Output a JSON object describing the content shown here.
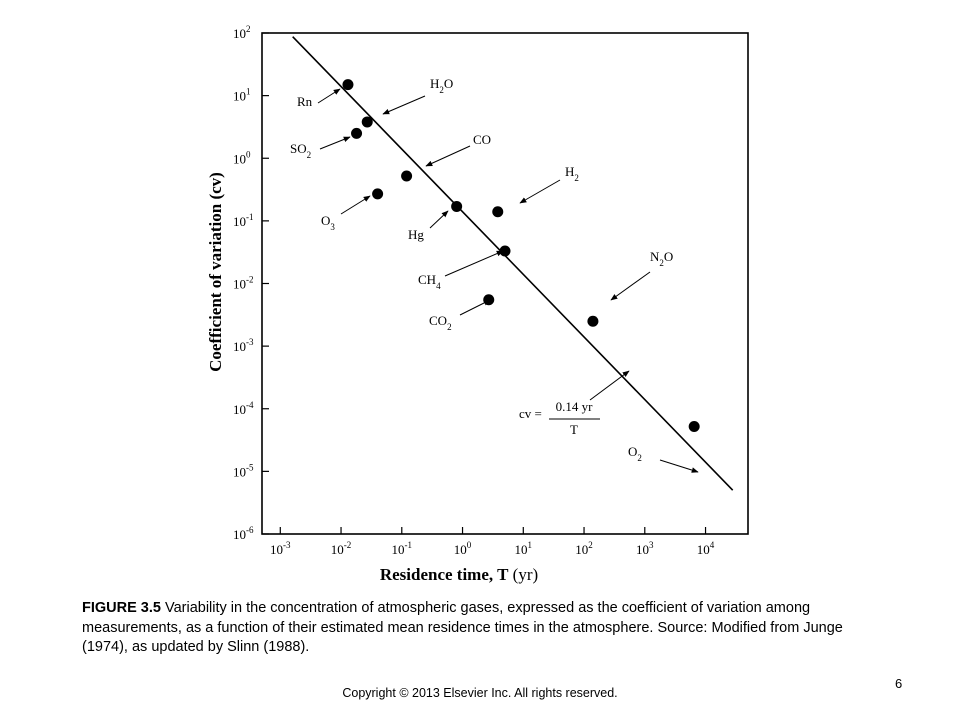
{
  "chart_data": {
    "type": "scatter",
    "xscale": "log",
    "yscale": "log",
    "xlim": [
      0.0005,
      50000
    ],
    "ylim": [
      1e-06,
      100
    ],
    "xlabel": "Residence time, T",
    "xlabel_unit": "(yr)",
    "ylabel": "Coefficient of variation (cv)",
    "x_ticks": [
      0.001,
      0.01,
      0.1,
      1,
      10,
      100,
      1000,
      10000
    ],
    "x_tick_exponents": [
      "-3",
      "-2",
      "-1",
      "0",
      "1",
      "2",
      "3",
      "4"
    ],
    "y_ticks": [
      1e-06,
      1e-05,
      0.0001,
      0.001,
      0.01,
      0.1,
      1,
      10,
      100
    ],
    "y_tick_exponents": [
      "-6",
      "-5",
      "-4",
      "-3",
      "-2",
      "-1",
      "0",
      "1",
      "2"
    ],
    "tick_base": "10",
    "grid": false,
    "points": [
      {
        "name": "Rn",
        "x": 0.013,
        "y": 15
      },
      {
        "name": "H2O",
        "x": 0.027,
        "y": 3.8
      },
      {
        "name": "SO2",
        "x": 0.018,
        "y": 2.5
      },
      {
        "name": "CO",
        "x": 0.12,
        "y": 0.52
      },
      {
        "name": "O3",
        "x": 0.04,
        "y": 0.27
      },
      {
        "name": "Hg",
        "x": 0.8,
        "y": 0.17
      },
      {
        "name": "H2",
        "x": 3.8,
        "y": 0.14
      },
      {
        "name": "CH4",
        "x": 5,
        "y": 0.033
      },
      {
        "name": "CO2",
        "x": 2.7,
        "y": 0.0055
      },
      {
        "name": "N2O",
        "x": 140,
        "y": 0.0025
      },
      {
        "name": "O2",
        "x": 6500,
        "y": 5.2e-05
      }
    ],
    "fit_line": {
      "coefficient": 0.14,
      "x_range": [
        0.0016,
        28000
      ]
    },
    "annotations": [
      {
        "text": "Rn",
        "subscript": ""
      },
      {
        "text": "H",
        "subscript": "2",
        "suffix": "O"
      },
      {
        "text": "SO",
        "subscript": "2"
      },
      {
        "text": "CO",
        "subscript": ""
      },
      {
        "text": "O",
        "subscript": "3"
      },
      {
        "text": "Hg",
        "subscript": ""
      },
      {
        "text": "H",
        "subscript": "2"
      },
      {
        "text": "CH",
        "subscript": "4"
      },
      {
        "text": "CO",
        "subscript": "2"
      },
      {
        "text": "N",
        "subscript": "2",
        "suffix": "O"
      },
      {
        "text": "O",
        "subscript": "2"
      }
    ],
    "equation": {
      "lhs": "cv = ",
      "numerator": "0.14 yr",
      "denominator": "T"
    }
  },
  "caption": {
    "label": "FIGURE 3.5",
    "text": " Variability in the concentration of atmospheric gases, expressed as the coefficient of variation among measurements, as a function of their estimated mean residence times in the atmosphere. Source: Modified from Junge (1974), as updated by Slinn (1988)."
  },
  "footer": {
    "copyright": "Copyright © 2013 Elsevier Inc. All rights reserved.",
    "page_number": "6"
  }
}
